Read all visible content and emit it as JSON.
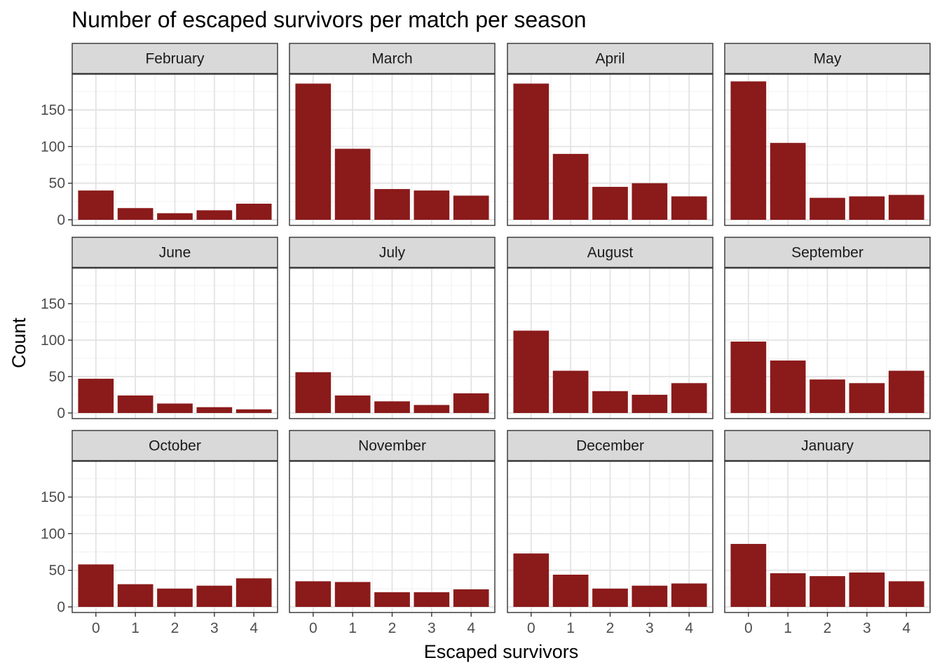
{
  "chart_data": {
    "type": "bar",
    "title": "Number of escaped survivors per match per season",
    "xlabel": "Escaped survivors",
    "ylabel": "Count",
    "categories": [
      "0",
      "1",
      "2",
      "3",
      "4"
    ],
    "yticks": [
      0,
      50,
      100,
      150
    ],
    "ylim": [
      0,
      195
    ],
    "grid": true,
    "bar_color": "#8B1A1A",
    "strip_color": "#D9D9D9",
    "facets": [
      {
        "name": "February",
        "values": [
          40,
          16,
          9,
          13,
          22
        ]
      },
      {
        "name": "March",
        "values": [
          186,
          97,
          42,
          40,
          33
        ]
      },
      {
        "name": "April",
        "values": [
          186,
          90,
          45,
          50,
          32
        ]
      },
      {
        "name": "May",
        "values": [
          189,
          105,
          30,
          32,
          34
        ]
      },
      {
        "name": "June",
        "values": [
          47,
          24,
          13,
          8,
          5
        ]
      },
      {
        "name": "July",
        "values": [
          56,
          24,
          16,
          11,
          27
        ]
      },
      {
        "name": "August",
        "values": [
          113,
          58,
          30,
          25,
          41
        ]
      },
      {
        "name": "September",
        "values": [
          98,
          72,
          46,
          41,
          58
        ]
      },
      {
        "name": "October",
        "values": [
          58,
          31,
          25,
          29,
          39
        ]
      },
      {
        "name": "November",
        "values": [
          35,
          34,
          20,
          20,
          24
        ]
      },
      {
        "name": "December",
        "values": [
          73,
          44,
          25,
          29,
          32
        ]
      },
      {
        "name": "January",
        "values": [
          86,
          46,
          42,
          47,
          35
        ]
      }
    ]
  }
}
